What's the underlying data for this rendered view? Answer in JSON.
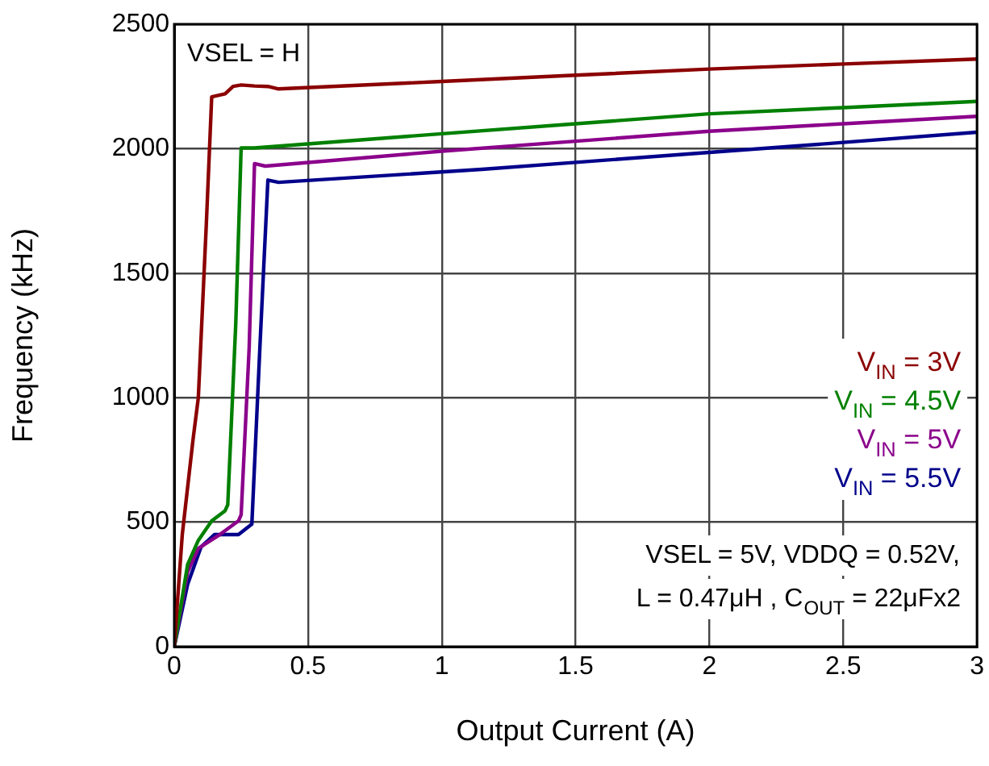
{
  "chart_data": {
    "type": "line",
    "xlabel": "Output Current (A)",
    "ylabel": "Frequency (kHz)",
    "xlim": [
      0,
      3
    ],
    "xticks": [
      0,
      0.5,
      1,
      1.5,
      2,
      2.5,
      3
    ],
    "ylim": [
      0,
      2500
    ],
    "yticks": [
      0,
      500,
      1000,
      1500,
      2000,
      2500
    ],
    "grid": true,
    "legend": "right",
    "marker": "none",
    "line_style": "solid",
    "annotations": [
      "VSEL = H",
      "VSEL = 5V, VDDQ = 0.52V,",
      "L = 0.47μH , C$_{OUT}$ = 22μFx2"
    ],
    "series": [
      {
        "name": "V$_{IN}$ = 3V",
        "color": "#8b0000",
        "x": [
          0,
          0.03,
          0.07,
          0.09,
          0.12,
          0.14,
          0.19,
          0.22,
          0.25,
          0.3,
          0.35,
          0.39,
          1,
          1.5,
          2,
          2.5,
          3
        ],
        "values": [
          0,
          450,
          830,
          1000,
          1700,
          2208,
          2220,
          2250,
          2256,
          2252,
          2250,
          2240,
          2270,
          2295,
          2320,
          2340,
          2360
        ]
      },
      {
        "name": "V$_{IN}$ = 4.5V",
        "color": "#008000",
        "x": [
          0,
          0.05,
          0.09,
          0.14,
          0.19,
          0.2,
          0.23,
          0.25,
          0.3,
          1,
          1.5,
          2,
          2.5,
          3
        ],
        "values": [
          0,
          330,
          427,
          505,
          546,
          570,
          1300,
          2003,
          2003,
          2060,
          2100,
          2140,
          2165,
          2190
        ]
      },
      {
        "name": "V$_{IN}$ = 5V",
        "color": "#8b008b",
        "x": [
          0,
          0.05,
          0.09,
          0.17,
          0.24,
          0.25,
          0.28,
          0.3,
          0.34,
          1,
          1.5,
          2,
          2.5,
          3
        ],
        "values": [
          0,
          300,
          395,
          450,
          505,
          530,
          1200,
          1940,
          1930,
          1990,
          2030,
          2070,
          2100,
          2130
        ]
      },
      {
        "name": "V$_{IN}$ = 5.5V",
        "color": "#00008b",
        "x": [
          0,
          0.05,
          0.1,
          0.15,
          0.24,
          0.29,
          0.32,
          0.35,
          0.39,
          1.15,
          1.5,
          2,
          2.5,
          3
        ],
        "values": [
          0,
          250,
          400,
          450,
          450,
          492,
          1200,
          1874,
          1865,
          1917,
          1945,
          1985,
          2025,
          2066
        ]
      }
    ]
  }
}
